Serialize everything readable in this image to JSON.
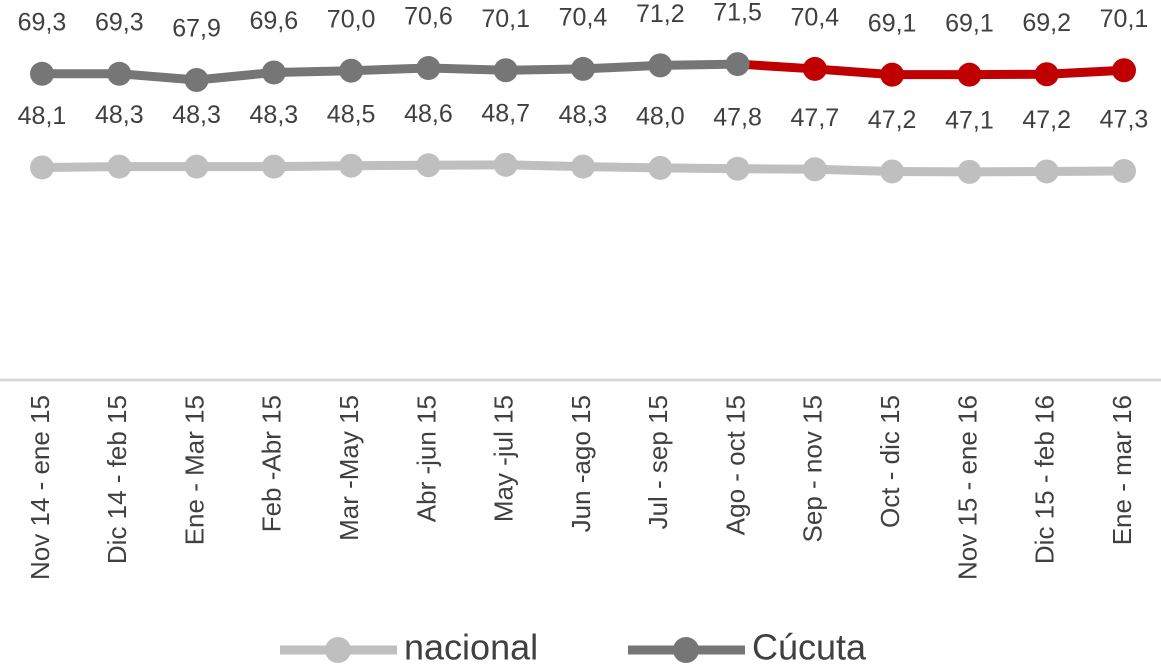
{
  "chart_data": {
    "type": "line",
    "categories": [
      "Nov 14 - ene 15",
      "Dic 14 - feb 15",
      "Ene - Mar 15",
      "Feb -Abr 15",
      "Mar -May 15",
      "Abr -jun 15",
      "May -jul 15",
      "Jun -ago 15",
      "Jul - sep 15",
      "Ago - oct 15",
      "Sep - nov 15",
      "Oct - dic 15",
      "Nov 15 - ene 16",
      "Dic 15 - feb 16",
      "Ene - mar 16"
    ],
    "series": [
      {
        "name": "nacional",
        "color": "#bfbfbf",
        "values": [
          48.1,
          48.3,
          48.3,
          48.3,
          48.5,
          48.6,
          48.7,
          48.3,
          48.0,
          47.8,
          47.7,
          47.2,
          47.1,
          47.2,
          47.3
        ],
        "value_labels": [
          "48,1",
          "48,3",
          "48,3",
          "48,3",
          "48,5",
          "48,6",
          "48,7",
          "48,3",
          "48,0",
          "47,8",
          "47,7",
          "47,2",
          "47,1",
          "47,2",
          "47,3"
        ]
      },
      {
        "name": "Cúcuta",
        "color": "#767676",
        "point_colors": [
          "#767676",
          "#767676",
          "#767676",
          "#767676",
          "#767676",
          "#767676",
          "#767676",
          "#767676",
          "#767676",
          "#767676",
          "#c00000",
          "#c00000",
          "#c00000",
          "#c00000",
          "#c00000"
        ],
        "values": [
          69.3,
          69.3,
          67.9,
          69.6,
          70.0,
          70.6,
          70.1,
          70.4,
          71.2,
          71.5,
          70.4,
          69.1,
          69.1,
          69.2,
          70.1
        ],
        "value_labels": [
          "69,3",
          "69,3",
          "67,9",
          "69,6",
          "70,0",
          "70,6",
          "70,1",
          "70,4",
          "71,2",
          "71,5",
          "70,4",
          "69,1",
          "69,1",
          "69,2",
          "70,1"
        ]
      }
    ],
    "ylim": [
      0,
      86
    ],
    "legend": "bottom"
  }
}
